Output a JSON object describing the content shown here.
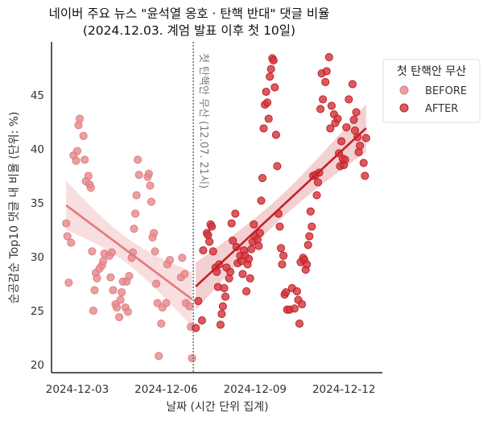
{
  "chart_data": {
    "type": "scatter",
    "title": "네이버 주요 뉴스 \"윤석열 옹호 · 탄핵 반대\" 댓글 비율",
    "subtitle": "(2024.12.03. 계엄 발표 이후 첫 10일)",
    "xlabel": "날짜 (시간 단위 집계)",
    "ylabel": "순공감순 Top10 댓글 내 비율 (단위: %)",
    "x_ticks": [
      "2024-12-03",
      "2024-12-06",
      "2024-12-09",
      "2024-12-12"
    ],
    "y_ticks": [
      20,
      25,
      30,
      35,
      40,
      45
    ],
    "xlim": [
      "2024-12-02 03:00",
      "2024-12-13 07:00"
    ],
    "ylim": [
      19.3,
      49.9
    ],
    "grid": false,
    "legend": {
      "title": "첫 탄핵안 무산",
      "placement": "right, outside top"
    },
    "regression": {
      "shown": true,
      "confidence_band": true
    },
    "annotation": {
      "text": "첫 탄핵안 무산 (12.07. 21시)",
      "x": "2024-12-06 22:00",
      "style": "dotted vertical line"
    },
    "series": [
      {
        "name": "BEFORE",
        "color": "#e8898b",
        "line_color": "#e07a7c",
        "points": [
          [
            "2024-12-02 15:00",
            33.1
          ],
          [
            "2024-12-02 16:00",
            31.9
          ],
          [
            "2024-12-02 17:00",
            27.6
          ],
          [
            "2024-12-02 19:00",
            31.3
          ],
          [
            "2024-12-02 21:00",
            39.4
          ],
          [
            "2024-12-02 23:00",
            38.9
          ],
          [
            "2024-12-03 00:00",
            39.8
          ],
          [
            "2024-12-03 01:00",
            42.2
          ],
          [
            "2024-12-03 02:00",
            42.8
          ],
          [
            "2024-12-03 05:00",
            41.2
          ],
          [
            "2024-12-03 06:00",
            39.0
          ],
          [
            "2024-12-03 07:00",
            37.0
          ],
          [
            "2024-12-03 09:00",
            37.5
          ],
          [
            "2024-12-03 10:00",
            36.7
          ],
          [
            "2024-12-03 11:00",
            36.4
          ],
          [
            "2024-12-03 12:00",
            30.5
          ],
          [
            "2024-12-03 13:00",
            25.0
          ],
          [
            "2024-12-03 14:00",
            26.9
          ],
          [
            "2024-12-03 15:00",
            28.5
          ],
          [
            "2024-12-03 16:00",
            28.0
          ],
          [
            "2024-12-03 18:00",
            28.9
          ],
          [
            "2024-12-03 20:00",
            29.2
          ],
          [
            "2024-12-03 21:00",
            29.6
          ],
          [
            "2024-12-03 22:00",
            30.3
          ],
          [
            "2024-12-04 02:00",
            30.1
          ],
          [
            "2024-12-04 03:00",
            28.1
          ],
          [
            "2024-12-04 04:00",
            30.4
          ],
          [
            "2024-12-04 05:00",
            26.9
          ],
          [
            "2024-12-04 07:00",
            25.6
          ],
          [
            "2024-12-04 08:00",
            25.3
          ],
          [
            "2024-12-04 10:00",
            24.4
          ],
          [
            "2024-12-04 11:00",
            26.0
          ],
          [
            "2024-12-04 12:00",
            26.7
          ],
          [
            "2024-12-04 13:00",
            27.7
          ],
          [
            "2024-12-04 15:00",
            25.3
          ],
          [
            "2024-12-04 16:00",
            27.7
          ],
          [
            "2024-12-04 17:00",
            24.9
          ],
          [
            "2024-12-04 18:00",
            28.2
          ],
          [
            "2024-12-04 20:00",
            29.9
          ],
          [
            "2024-12-04 21:00",
            30.4
          ],
          [
            "2024-12-04 22:00",
            32.6
          ],
          [
            "2024-12-04 23:00",
            34.0
          ],
          [
            "2024-12-05 00:00",
            35.7
          ],
          [
            "2024-12-05 01:00",
            39.0
          ],
          [
            "2024-12-05 02:00",
            37.6
          ],
          [
            "2024-12-05 09:00",
            37.4
          ],
          [
            "2024-12-05 10:00",
            37.7
          ],
          [
            "2024-12-05 11:00",
            36.6
          ],
          [
            "2024-12-05 12:00",
            35.1
          ],
          [
            "2024-12-05 13:00",
            31.8
          ],
          [
            "2024-12-05 14:00",
            32.2
          ],
          [
            "2024-12-05 15:00",
            30.5
          ],
          [
            "2024-12-05 16:00",
            27.5
          ],
          [
            "2024-12-05 17:00",
            25.7
          ],
          [
            "2024-12-05 18:00",
            20.8
          ],
          [
            "2024-12-05 20:00",
            23.8
          ],
          [
            "2024-12-05 21:00",
            25.3
          ],
          [
            "2024-12-06 00:00",
            25.7
          ],
          [
            "2024-12-06 01:00",
            29.3
          ],
          [
            "2024-12-06 03:00",
            29.7
          ],
          [
            "2024-12-06 12:00",
            28.1
          ],
          [
            "2024-12-06 13:00",
            29.9
          ],
          [
            "2024-12-06 15:00",
            28.4
          ],
          [
            "2024-12-06 16:00",
            25.7
          ],
          [
            "2024-12-06 19:00",
            25.4
          ],
          [
            "2024-12-06 20:00",
            23.5
          ],
          [
            "2024-12-06 21:00",
            20.6
          ]
        ]
      },
      {
        "name": "AFTER",
        "color": "#d6353a",
        "line_color": "#c81e25",
        "points": [
          [
            "2024-12-07 00:00",
            23.4
          ],
          [
            "2024-12-07 02:00",
            25.9
          ],
          [
            "2024-12-07 05:00",
            24.1
          ],
          [
            "2024-12-07 06:00",
            30.6
          ],
          [
            "2024-12-07 09:00",
            32.2
          ],
          [
            "2024-12-07 10:00",
            32.0
          ],
          [
            "2024-12-07 11:00",
            31.4
          ],
          [
            "2024-12-07 12:00",
            33.0
          ],
          [
            "2024-12-07 13:00",
            32.8
          ],
          [
            "2024-12-07 14:00",
            30.5
          ],
          [
            "2024-12-07 16:00",
            29.0
          ],
          [
            "2024-12-07 17:00",
            28.6
          ],
          [
            "2024-12-07 18:00",
            27.2
          ],
          [
            "2024-12-07 19:00",
            29.3
          ],
          [
            "2024-12-07 20:00",
            23.7
          ],
          [
            "2024-12-07 21:00",
            24.7
          ],
          [
            "2024-12-07 22:00",
            25.4
          ],
          [
            "2024-12-07 23:00",
            27.1
          ],
          [
            "2024-12-08 00:00",
            26.3
          ],
          [
            "2024-12-08 01:00",
            29.0
          ],
          [
            "2024-12-08 03:00",
            28.0
          ],
          [
            "2024-12-08 04:00",
            28.6
          ],
          [
            "2024-12-08 05:00",
            33.1
          ],
          [
            "2024-12-08 06:00",
            31.5
          ],
          [
            "2024-12-08 08:00",
            34.0
          ],
          [
            "2024-12-08 09:00",
            30.9
          ],
          [
            "2024-12-08 10:00",
            29.4
          ],
          [
            "2024-12-08 12:00",
            30.1
          ],
          [
            "2024-12-08 13:00",
            29.6
          ],
          [
            "2024-12-08 14:00",
            28.4
          ],
          [
            "2024-12-08 15:00",
            30.6
          ],
          [
            "2024-12-08 16:00",
            30.1
          ],
          [
            "2024-12-08 17:00",
            26.8
          ],
          [
            "2024-12-08 18:00",
            29.3
          ],
          [
            "2024-12-08 19:00",
            29.8
          ],
          [
            "2024-12-08 20:00",
            28.0
          ],
          [
            "2024-12-08 21:00",
            30.7
          ],
          [
            "2024-12-08 22:00",
            31.4
          ],
          [
            "2024-12-08 23:00",
            33.0
          ],
          [
            "2024-12-09 00:00",
            31.9
          ],
          [
            "2024-12-09 02:00",
            31.6
          ],
          [
            "2024-12-09 03:00",
            31.0
          ],
          [
            "2024-12-09 04:00",
            32.2
          ],
          [
            "2024-12-09 05:00",
            35.2
          ],
          [
            "2024-12-09 06:00",
            37.3
          ],
          [
            "2024-12-09 07:00",
            41.9
          ],
          [
            "2024-12-09 08:00",
            44.1
          ],
          [
            "2024-12-09 09:00",
            45.3
          ],
          [
            "2024-12-09 10:00",
            44.3
          ],
          [
            "2024-12-09 11:00",
            42.8
          ],
          [
            "2024-12-09 12:00",
            46.7
          ],
          [
            "2024-12-09 13:00",
            47.4
          ],
          [
            "2024-12-09 14:00",
            48.4
          ],
          [
            "2024-12-09 15:00",
            48.2
          ],
          [
            "2024-12-09 16:00",
            45.7
          ],
          [
            "2024-12-09 17:00",
            41.3
          ],
          [
            "2024-12-09 18:00",
            38.4
          ],
          [
            "2024-12-09 19:00",
            34.0
          ],
          [
            "2024-12-09 20:00",
            32.8
          ],
          [
            "2024-12-09 21:00",
            30.8
          ],
          [
            "2024-12-09 22:00",
            29.3
          ],
          [
            "2024-12-09 23:00",
            30.1
          ],
          [
            "2024-12-10 00:00",
            26.5
          ],
          [
            "2024-12-10 01:00",
            26.7
          ],
          [
            "2024-12-10 02:00",
            25.1
          ],
          [
            "2024-12-10 04:00",
            25.1
          ],
          [
            "2024-12-10 06:00",
            27.1
          ],
          [
            "2024-12-10 08:00",
            25.2
          ],
          [
            "2024-12-10 10:00",
            26.8
          ],
          [
            "2024-12-10 11:00",
            26.0
          ],
          [
            "2024-12-10 12:00",
            23.8
          ],
          [
            "2024-12-10 13:00",
            29.5
          ],
          [
            "2024-12-10 14:00",
            25.6
          ],
          [
            "2024-12-10 15:00",
            29.9
          ],
          [
            "2024-12-10 16:00",
            29.7
          ],
          [
            "2024-12-10 17:00",
            28.8
          ],
          [
            "2024-12-10 18:00",
            29.3
          ],
          [
            "2024-12-10 19:00",
            31.1
          ],
          [
            "2024-12-10 20:00",
            31.9
          ],
          [
            "2024-12-10 21:00",
            34.2
          ],
          [
            "2024-12-10 22:00",
            32.8
          ],
          [
            "2024-12-10 23:00",
            37.5
          ],
          [
            "2024-12-11 01:00",
            37.6
          ],
          [
            "2024-12-11 02:00",
            35.7
          ],
          [
            "2024-12-11 03:00",
            36.9
          ],
          [
            "2024-12-11 04:00",
            37.8
          ],
          [
            "2024-12-11 05:00",
            43.7
          ],
          [
            "2024-12-11 06:00",
            47.0
          ],
          [
            "2024-12-11 07:00",
            44.6
          ],
          [
            "2024-12-11 09:00",
            46.2
          ],
          [
            "2024-12-11 10:00",
            47.2
          ],
          [
            "2024-12-11 12:00",
            48.5
          ],
          [
            "2024-12-11 13:00",
            41.9
          ],
          [
            "2024-12-11 14:00",
            44.0
          ],
          [
            "2024-12-11 16:00",
            43.2
          ],
          [
            "2024-12-11 17:00",
            42.4
          ],
          [
            "2024-12-11 19:00",
            42.8
          ],
          [
            "2024-12-11 20:00",
            39.6
          ],
          [
            "2024-12-11 21:00",
            38.4
          ],
          [
            "2024-12-11 22:00",
            40.7
          ],
          [
            "2024-12-11 23:00",
            39.1
          ],
          [
            "2024-12-12 00:00",
            38.5
          ],
          [
            "2024-12-12 01:00",
            39.0
          ],
          [
            "2024-12-12 02:00",
            42.0
          ],
          [
            "2024-12-12 04:00",
            44.6
          ],
          [
            "2024-12-12 07:00",
            46.0
          ],
          [
            "2024-12-12 08:00",
            42.7
          ],
          [
            "2024-12-12 09:00",
            41.7
          ],
          [
            "2024-12-12 10:00",
            43.4
          ],
          [
            "2024-12-12 11:00",
            41.1
          ],
          [
            "2024-12-12 12:00",
            39.7
          ],
          [
            "2024-12-12 13:00",
            40.3
          ],
          [
            "2024-12-12 16:00",
            38.7
          ],
          [
            "2024-12-12 17:00",
            37.5
          ],
          [
            "2024-12-12 18:00",
            41.0
          ]
        ]
      }
    ]
  }
}
